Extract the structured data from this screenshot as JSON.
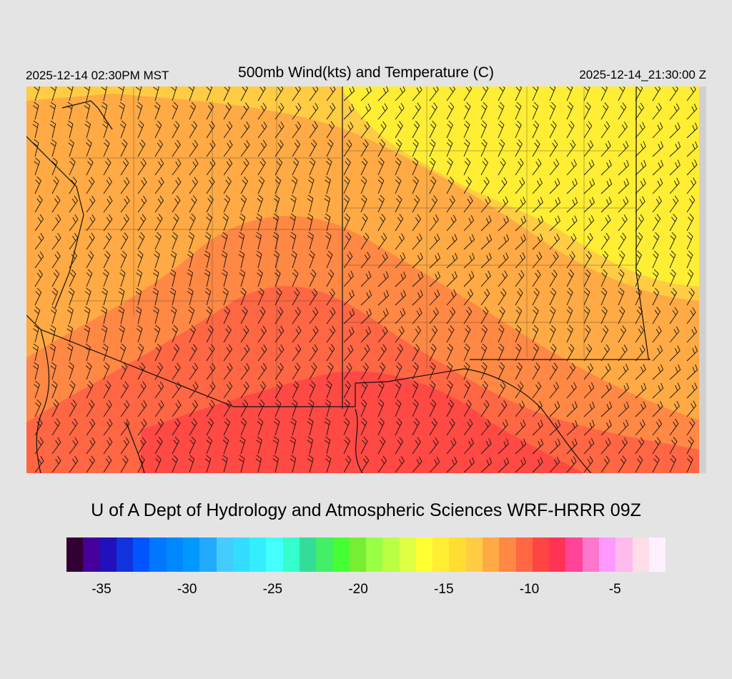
{
  "header": {
    "local_time": "2025-12-14 02:30PM MST",
    "title": "500mb Wind(kts) and Temperature (C)",
    "utc_time": "2025-12-14_21:30:00 Z"
  },
  "credit": "U of A Dept of Hydrology and Atmospheric Sciences WRF-HRRR 09Z",
  "legend": {
    "colors": [
      "#330033",
      "#440099",
      "#2211bb",
      "#1133dd",
      "#0055ff",
      "#0077ff",
      "#0088ff",
      "#0099ff",
      "#22aaff",
      "#44ccff",
      "#33ddff",
      "#33eeff",
      "#44ffff",
      "#33ffcc",
      "#33dd99",
      "#44ee66",
      "#44ff33",
      "#77ee33",
      "#99ff44",
      "#bbff44",
      "#ddff44",
      "#ffff33",
      "#ffee33",
      "#ffdd33",
      "#ffcc44",
      "#ffaa44",
      "#ff8844",
      "#ff6644",
      "#ff4444",
      "#ff3355",
      "#ff4499",
      "#ff77cc",
      "#ff99ff",
      "#ffbbee",
      "#ffdde8",
      "#fff0ff"
    ],
    "ticks": [
      {
        "value": -35,
        "label": "-35"
      },
      {
        "value": -30,
        "label": "-30"
      },
      {
        "value": -25,
        "label": "-25"
      },
      {
        "value": -20,
        "label": "-20"
      },
      {
        "value": -15,
        "label": "-15"
      },
      {
        "value": -10,
        "label": "-10"
      },
      {
        "value": -5,
        "label": "-5"
      }
    ],
    "range": [
      -36,
      -1
    ]
  },
  "map_colors": {
    "warmest": "#ff4444",
    "warm": "#ff6644",
    "mid": "#ff8844",
    "cool": "#ffaa44",
    "cooler": "#ffcc44",
    "coolest": "#ffee33",
    "border": "#111111",
    "contour": "#996633",
    "barb": "#111111"
  }
}
